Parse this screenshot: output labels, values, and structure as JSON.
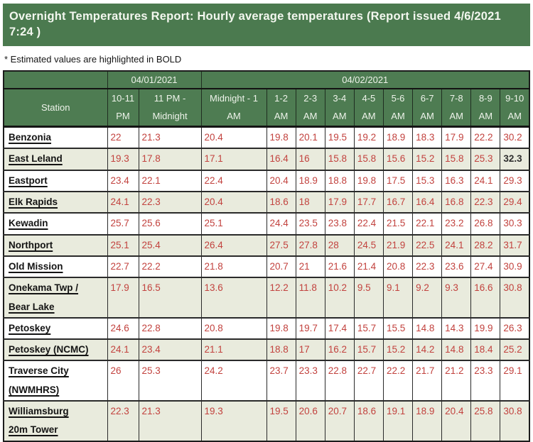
{
  "report": {
    "title": "Overnight Temperatures Report: Hourly average temperatures (Report issued 4/6/2021 7:24 )",
    "note": "* Estimated values are highlighted in BOLD"
  },
  "colors": {
    "title_bar_green": "#4b7a4f",
    "header_green": "#4e7c52",
    "alt_row_green": "#e9ebdd",
    "value_red": "#c2423e",
    "estimated_black": "#2e2e2e"
  },
  "table": {
    "date_groups": [
      {
        "label": "04/01/2021",
        "span": 2
      },
      {
        "label": "04/02/2021",
        "span": 10
      }
    ],
    "columns": [
      "Station",
      "10-11 PM",
      "11 PM - Midnight",
      "Midnight - 1 AM",
      "1-2 AM",
      "2-3 AM",
      "3-4 AM",
      "4-5 AM",
      "5-6 AM",
      "6-7 AM",
      "7-8 AM",
      "8-9 AM",
      "9-10 AM"
    ],
    "rows": [
      {
        "station": "Benzonia",
        "values": [
          "22",
          "21.3",
          "20.4",
          "19.8",
          "20.1",
          "19.5",
          "19.2",
          "18.9",
          "18.3",
          "17.9",
          "22.2",
          "30.2"
        ],
        "estimated": []
      },
      {
        "station": "East Leland",
        "values": [
          "19.3",
          "17.8",
          "17.1",
          "16.4",
          "16",
          "15.8",
          "15.8",
          "15.6",
          "15.2",
          "15.8",
          "25.3",
          "32.3"
        ],
        "estimated": [
          11
        ]
      },
      {
        "station": "Eastport",
        "values": [
          "23.4",
          "22.1",
          "22.4",
          "20.4",
          "18.9",
          "18.8",
          "19.8",
          "17.5",
          "15.3",
          "16.3",
          "24.1",
          "29.3"
        ],
        "estimated": []
      },
      {
        "station": "Elk Rapids",
        "values": [
          "24.1",
          "22.3",
          "20.4",
          "18.6",
          "18",
          "17.9",
          "17.7",
          "16.7",
          "16.4",
          "16.8",
          "22.3",
          "29.4"
        ],
        "estimated": []
      },
      {
        "station": "Kewadin",
        "values": [
          "25.7",
          "25.6",
          "25.1",
          "24.4",
          "23.5",
          "23.8",
          "22.4",
          "21.5",
          "22.1",
          "23.2",
          "26.8",
          "30.3"
        ],
        "estimated": []
      },
      {
        "station": "Northport",
        "values": [
          "25.1",
          "25.4",
          "26.4",
          "27.5",
          "27.8",
          "28",
          "24.5",
          "21.9",
          "22.5",
          "24.1",
          "28.2",
          "31.7"
        ],
        "estimated": []
      },
      {
        "station": "Old Mission",
        "values": [
          "22.7",
          "22.2",
          "21.8",
          "20.7",
          "21",
          "21.6",
          "21.4",
          "20.8",
          "22.3",
          "23.6",
          "27.4",
          "30.9"
        ],
        "estimated": []
      },
      {
        "station": "Onekama Twp /\nBear Lake",
        "values": [
          "17.9",
          "16.5",
          "13.6",
          "12.2",
          "11.8",
          "10.2",
          "9.5",
          "9.1",
          "9.2",
          "9.3",
          "16.6",
          "30.8"
        ],
        "estimated": []
      },
      {
        "station": "Petoskey",
        "values": [
          "24.6",
          "22.8",
          "20.8",
          "19.8",
          "19.7",
          "17.4",
          "15.7",
          "15.5",
          "14.8",
          "14.3",
          "19.9",
          "26.3"
        ],
        "estimated": []
      },
      {
        "station": "Petoskey (NCMC)",
        "values": [
          "24.1",
          "23.4",
          "21.1",
          "18.8",
          "17",
          "16.2",
          "15.7",
          "15.2",
          "14.2",
          "14.8",
          "18.4",
          "25.2"
        ],
        "estimated": []
      },
      {
        "station": "Traverse City\n(NWMHRS)",
        "values": [
          "26",
          "25.3",
          "24.2",
          "23.7",
          "23.3",
          "22.8",
          "22.7",
          "22.2",
          "21.7",
          "21.2",
          "23.3",
          "29.1"
        ],
        "estimated": []
      },
      {
        "station": "Williamsburg\n20m Tower",
        "values": [
          "22.3",
          "21.3",
          "19.3",
          "19.5",
          "20.6",
          "20.7",
          "18.6",
          "19.1",
          "18.9",
          "20.4",
          "25.8",
          "30.8"
        ],
        "estimated": []
      }
    ]
  }
}
